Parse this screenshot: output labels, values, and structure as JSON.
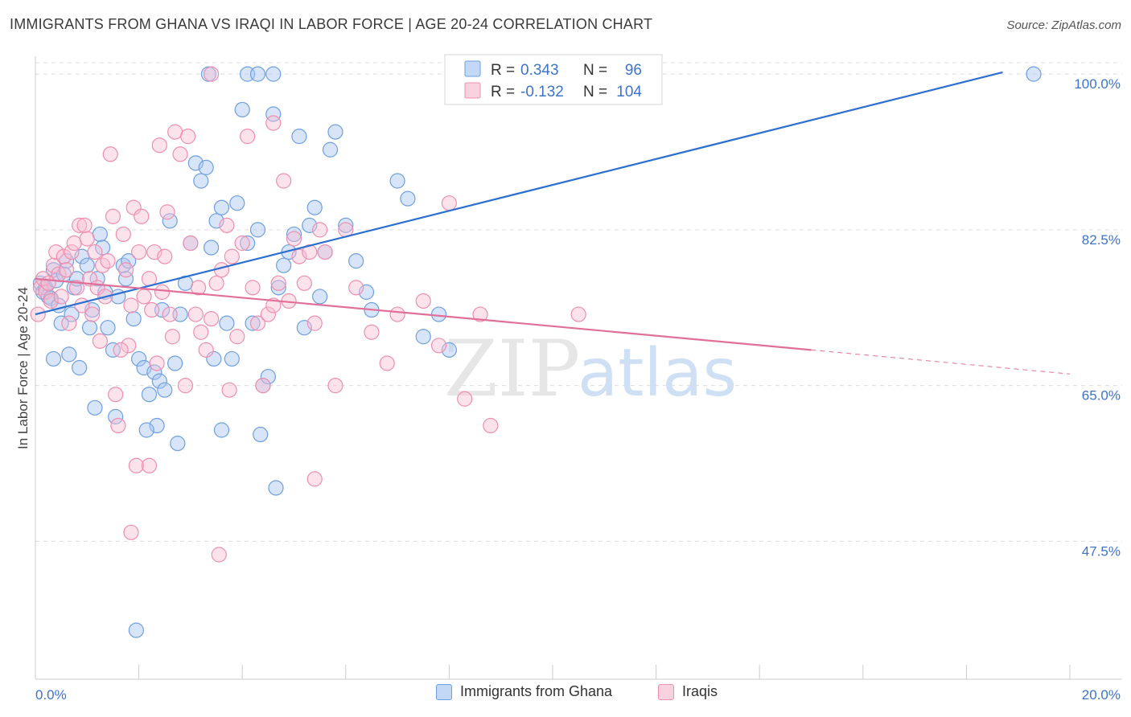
{
  "header": {
    "title": "IMMIGRANTS FROM GHANA VS IRAQI IN LABOR FORCE | AGE 20-24 CORRELATION CHART",
    "source": "Source: ZipAtlas.com"
  },
  "watermark": {
    "zip": "ZIP",
    "atlas": "atlas"
  },
  "chart_data": {
    "type": "scatter",
    "title": "IMMIGRANTS FROM GHANA VS IRAQI IN LABOR FORCE | AGE 20-24 CORRELATION CHART",
    "xlabel": "",
    "ylabel": "In Labor Force | Age 20-24",
    "xlim": [
      0,
      20
    ],
    "ylim": [
      32,
      102
    ],
    "x_tick_labels": [
      "0.0%",
      "20.0%"
    ],
    "y_ticks": [
      47.5,
      65.0,
      82.5,
      100.0
    ],
    "y_tick_labels": [
      "47.5%",
      "65.0%",
      "82.5%",
      "100.0%"
    ],
    "grid": "horizontal dashed",
    "legend_position": "top-center",
    "stats_legend": [
      {
        "r_label": "R =",
        "r_value": "0.343",
        "n_label": "N =",
        "n_value": "96",
        "color": "#6e9fe0"
      },
      {
        "r_label": "R =",
        "r_value": "-0.132",
        "n_label": "N =",
        "n_value": "104",
        "color": "#ee8fb0"
      }
    ],
    "series": [
      {
        "name": "Immigrants from Ghana",
        "color": "#6e9fe0",
        "fill": "#a9c6f0",
        "trend": {
          "x": [
            0.0,
            18.7
          ],
          "y": [
            73.0,
            100.2
          ],
          "line_color": "#2d6fcf"
        },
        "points": [
          [
            0.1,
            76.5
          ],
          [
            0.15,
            75.5
          ],
          [
            0.2,
            76.0
          ],
          [
            0.25,
            75.0
          ],
          [
            0.3,
            74.8
          ],
          [
            0.35,
            78.0
          ],
          [
            0.4,
            76.8
          ],
          [
            0.45,
            74.0
          ],
          [
            0.5,
            72.0
          ],
          [
            0.55,
            77.5
          ],
          [
            0.6,
            79.0
          ],
          [
            0.7,
            73.0
          ],
          [
            0.75,
            76.0
          ],
          [
            0.8,
            77.0
          ],
          [
            0.9,
            79.5
          ],
          [
            1.0,
            78.5
          ],
          [
            1.1,
            73.5
          ],
          [
            1.2,
            77.0
          ],
          [
            1.25,
            82.0
          ],
          [
            1.3,
            80.5
          ],
          [
            1.35,
            75.5
          ],
          [
            1.4,
            71.5
          ],
          [
            1.5,
            69.0
          ],
          [
            1.6,
            75.0
          ],
          [
            1.7,
            78.5
          ],
          [
            1.8,
            79.0
          ],
          [
            1.9,
            72.5
          ],
          [
            2.0,
            68.0
          ],
          [
            2.1,
            67.0
          ],
          [
            2.2,
            64.0
          ],
          [
            2.3,
            66.5
          ],
          [
            2.4,
            65.5
          ],
          [
            2.5,
            64.5
          ],
          [
            2.6,
            83.5
          ],
          [
            2.7,
            67.5
          ],
          [
            2.8,
            73.0
          ],
          [
            2.9,
            76.5
          ],
          [
            3.0,
            81.0
          ],
          [
            3.1,
            90.0
          ],
          [
            3.2,
            88.0
          ],
          [
            3.3,
            89.5
          ],
          [
            3.4,
            80.5
          ],
          [
            3.5,
            83.5
          ],
          [
            3.6,
            85.0
          ],
          [
            3.7,
            72.0
          ],
          [
            3.8,
            68.0
          ],
          [
            3.9,
            85.5
          ],
          [
            4.0,
            96.0
          ],
          [
            4.1,
            81.0
          ],
          [
            4.2,
            72.0
          ],
          [
            4.3,
            82.5
          ],
          [
            4.4,
            65.0
          ],
          [
            4.5,
            66.0
          ],
          [
            4.6,
            95.5
          ],
          [
            4.7,
            76.0
          ],
          [
            4.8,
            78.5
          ],
          [
            4.9,
            80.0
          ],
          [
            5.0,
            82.0
          ],
          [
            5.1,
            93.0
          ],
          [
            5.2,
            71.5
          ],
          [
            5.3,
            83.0
          ],
          [
            5.4,
            85.0
          ],
          [
            5.5,
            75.0
          ],
          [
            5.6,
            80.0
          ],
          [
            5.7,
            91.5
          ],
          [
            5.8,
            93.5
          ],
          [
            6.0,
            83.0
          ],
          [
            6.2,
            79.0
          ],
          [
            6.4,
            75.5
          ],
          [
            6.5,
            73.5
          ],
          [
            7.0,
            88.0
          ],
          [
            7.2,
            86.0
          ],
          [
            7.5,
            70.5
          ],
          [
            7.8,
            73.0
          ],
          [
            8.0,
            69.0
          ],
          [
            0.35,
            68.0
          ],
          [
            0.65,
            68.5
          ],
          [
            1.15,
            62.5
          ],
          [
            1.55,
            61.5
          ],
          [
            2.35,
            60.5
          ],
          [
            2.75,
            58.5
          ],
          [
            3.35,
            100.0
          ],
          [
            4.1,
            100.0
          ],
          [
            4.3,
            100.0
          ],
          [
            4.6,
            100.0
          ],
          [
            3.6,
            60.0
          ],
          [
            4.35,
            59.5
          ],
          [
            4.65,
            53.5
          ],
          [
            1.95,
            37.5
          ],
          [
            19.3,
            100.0
          ],
          [
            2.15,
            60.0
          ],
          [
            1.05,
            71.5
          ],
          [
            0.85,
            67.0
          ],
          [
            1.75,
            77.0
          ],
          [
            2.45,
            73.5
          ],
          [
            3.45,
            68.0
          ]
        ]
      },
      {
        "name": "Iraqis",
        "color": "#ee8fb0",
        "fill": "#f6bfd3",
        "trend": {
          "x": [
            0.0,
            15.0
          ],
          "y": [
            77.0,
            69.0
          ],
          "line_color": "#e0709a"
        },
        "trend_dashed": {
          "x": [
            15.0,
            20.0
          ],
          "y": [
            69.0,
            66.3
          ]
        },
        "points": [
          [
            0.05,
            73.0
          ],
          [
            0.1,
            76.0
          ],
          [
            0.15,
            77.0
          ],
          [
            0.2,
            75.5
          ],
          [
            0.25,
            76.5
          ],
          [
            0.3,
            74.5
          ],
          [
            0.35,
            78.5
          ],
          [
            0.4,
            80.0
          ],
          [
            0.45,
            77.5
          ],
          [
            0.5,
            75.0
          ],
          [
            0.55,
            79.5
          ],
          [
            0.6,
            78.0
          ],
          [
            0.7,
            80.0
          ],
          [
            0.75,
            81.0
          ],
          [
            0.8,
            76.0
          ],
          [
            0.85,
            83.0
          ],
          [
            0.9,
            74.0
          ],
          [
            1.0,
            81.5
          ],
          [
            1.05,
            77.0
          ],
          [
            1.1,
            73.0
          ],
          [
            1.15,
            80.0
          ],
          [
            1.2,
            76.0
          ],
          [
            1.3,
            78.5
          ],
          [
            1.35,
            75.0
          ],
          [
            1.4,
            79.0
          ],
          [
            1.5,
            84.0
          ],
          [
            1.55,
            64.0
          ],
          [
            1.6,
            60.5
          ],
          [
            1.7,
            82.0
          ],
          [
            1.75,
            78.0
          ],
          [
            1.8,
            69.5
          ],
          [
            1.85,
            74.0
          ],
          [
            1.9,
            85.0
          ],
          [
            2.0,
            80.0
          ],
          [
            2.05,
            84.0
          ],
          [
            2.1,
            75.0
          ],
          [
            2.2,
            77.0
          ],
          [
            2.3,
            80.0
          ],
          [
            2.35,
            67.5
          ],
          [
            2.45,
            75.5
          ],
          [
            2.5,
            79.5
          ],
          [
            2.6,
            73.0
          ],
          [
            2.7,
            93.5
          ],
          [
            2.8,
            91.0
          ],
          [
            2.9,
            65.0
          ],
          [
            3.0,
            81.0
          ],
          [
            3.1,
            73.0
          ],
          [
            3.2,
            71.0
          ],
          [
            3.3,
            69.0
          ],
          [
            3.4,
            72.5
          ],
          [
            3.5,
            76.5
          ],
          [
            3.6,
            78.0
          ],
          [
            3.7,
            83.0
          ],
          [
            3.8,
            79.5
          ],
          [
            3.9,
            70.5
          ],
          [
            4.0,
            81.0
          ],
          [
            4.1,
            93.0
          ],
          [
            4.2,
            76.0
          ],
          [
            4.3,
            72.0
          ],
          [
            4.4,
            65.0
          ],
          [
            4.5,
            73.0
          ],
          [
            4.6,
            74.0
          ],
          [
            4.7,
            76.5
          ],
          [
            4.8,
            88.0
          ],
          [
            4.9,
            74.5
          ],
          [
            5.0,
            81.5
          ],
          [
            5.1,
            79.5
          ],
          [
            5.2,
            76.5
          ],
          [
            5.3,
            80.0
          ],
          [
            5.4,
            72.0
          ],
          [
            5.5,
            82.5
          ],
          [
            5.6,
            80.0
          ],
          [
            5.8,
            65.0
          ],
          [
            6.0,
            82.5
          ],
          [
            6.2,
            76.0
          ],
          [
            6.5,
            71.0
          ],
          [
            6.8,
            67.5
          ],
          [
            7.0,
            73.0
          ],
          [
            7.5,
            74.5
          ],
          [
            7.8,
            69.5
          ],
          [
            8.0,
            85.5
          ],
          [
            8.3,
            63.5
          ],
          [
            8.6,
            73.0
          ],
          [
            8.8,
            60.5
          ],
          [
            10.5,
            73.0
          ],
          [
            1.45,
            91.0
          ],
          [
            2.4,
            92.0
          ],
          [
            2.95,
            93.0
          ],
          [
            3.4,
            100.0
          ],
          [
            4.6,
            94.5
          ],
          [
            1.85,
            48.5
          ],
          [
            3.55,
            46.0
          ],
          [
            1.95,
            56.0
          ],
          [
            2.2,
            56.0
          ],
          [
            5.4,
            54.5
          ],
          [
            2.55,
            84.5
          ],
          [
            0.95,
            83.0
          ],
          [
            1.65,
            69.0
          ],
          [
            2.25,
            73.5
          ],
          [
            3.15,
            76.0
          ],
          [
            0.65,
            72.0
          ],
          [
            1.25,
            70.0
          ],
          [
            2.65,
            70.5
          ],
          [
            3.75,
            64.5
          ]
        ]
      }
    ]
  }
}
